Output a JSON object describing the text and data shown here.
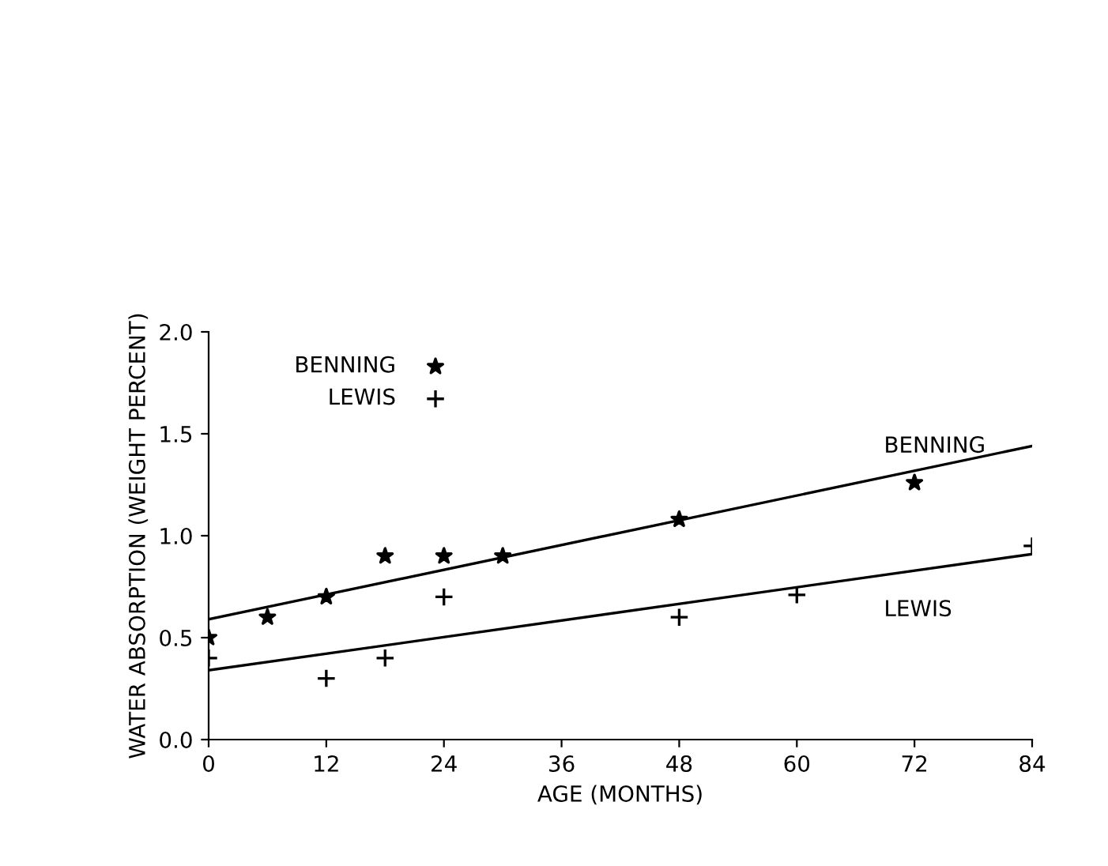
{
  "chart_data": {
    "type": "scatter",
    "xlabel": "AGE (MONTHS)",
    "ylabel": "WATER ABSORPTION (WEIGHT PERCENT)",
    "xlim": [
      0,
      84
    ],
    "xticks": [
      0,
      12,
      24,
      36,
      48,
      60,
      72,
      84
    ],
    "ylim": [
      0,
      2.0
    ],
    "yticks": [
      {
        "value": 0,
        "label": "0.0"
      },
      {
        "value": 0.5,
        "label": "0.5"
      },
      {
        "value": 1.0,
        "label": "1.0"
      },
      {
        "value": 1.5,
        "label": "1.5"
      },
      {
        "value": 2.0,
        "label": "2.0"
      }
    ],
    "grid": false,
    "legend": "top left",
    "series": [
      {
        "name": "BENNING",
        "color": "#000000",
        "marker": "star",
        "x": [
          0,
          6,
          12,
          18,
          24,
          30,
          48,
          72
        ],
        "values": [
          0.5,
          0.6,
          0.7,
          0.9,
          0.9,
          0.9,
          1.08,
          1.26
        ]
      },
      {
        "name": "LEWIS",
        "color": "#000000",
        "marker": "cross",
        "x": [
          0,
          12,
          18,
          24,
          48,
          60,
          84
        ],
        "values": [
          0.4,
          0.3,
          0.4,
          0.7,
          0.6,
          0.71,
          0.95
        ]
      },
      {
        "name": "BENNING",
        "type": "line",
        "color": "#000000",
        "marker": "none",
        "line_style": "solid",
        "x": [
          0,
          84
        ],
        "values": [
          0.59,
          1.44
        ]
      },
      {
        "name": "LEWIS",
        "type": "line",
        "color": "#000000",
        "marker": "none",
        "line_style": "solid",
        "x": [
          0,
          84
        ],
        "values": [
          0.34,
          0.91
        ]
      }
    ]
  }
}
